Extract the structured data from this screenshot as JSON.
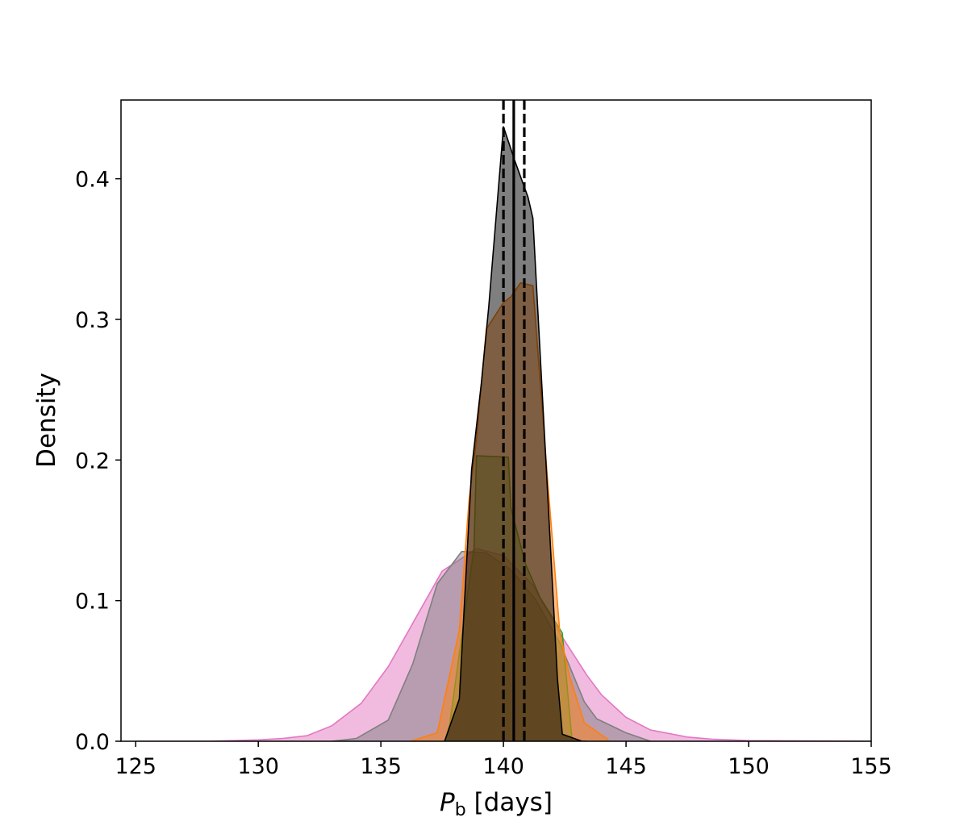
{
  "chart_data": {
    "type": "area",
    "title": "",
    "xlabel": {
      "symbol": "P",
      "subscript": "b",
      "unit": " [days]"
    },
    "ylabel": "Density",
    "xlim": [
      124.4,
      155
    ],
    "ylim": [
      0,
      0.456
    ],
    "xticks": [
      {
        "value": 125,
        "label": "125"
      },
      {
        "value": 130,
        "label": "130"
      },
      {
        "value": 135,
        "label": "135"
      },
      {
        "value": 140,
        "label": "140"
      },
      {
        "value": 145,
        "label": "145"
      },
      {
        "value": 150,
        "label": "150"
      },
      {
        "value": 155,
        "label": "155"
      }
    ],
    "yticks": [
      {
        "value": 0.0,
        "label": "0.0"
      },
      {
        "value": 0.1,
        "label": "0.1"
      },
      {
        "value": 0.2,
        "label": "0.2"
      },
      {
        "value": 0.3,
        "label": "0.3"
      },
      {
        "value": 0.4,
        "label": "0.4"
      }
    ],
    "grid": false,
    "legend": "none",
    "series": [
      {
        "color": "#e377c2",
        "fill_opacity": 0.5,
        "points": [
          [
            125,
            0
          ],
          [
            128,
            0
          ],
          [
            130,
            0.001
          ],
          [
            131,
            0.002
          ],
          [
            132,
            0.004
          ],
          [
            133,
            0.011
          ],
          [
            134.2,
            0.027
          ],
          [
            135.3,
            0.053
          ],
          [
            136.4,
            0.087
          ],
          [
            137.5,
            0.121
          ],
          [
            138.9,
            0.137
          ],
          [
            140,
            0.132
          ],
          [
            141.2,
            0.111
          ],
          [
            142.4,
            0.074
          ],
          [
            143.4,
            0.047
          ],
          [
            144,
            0.033
          ],
          [
            145,
            0.017
          ],
          [
            146,
            0.008
          ],
          [
            147.5,
            0.003
          ],
          [
            148.5,
            0.0015
          ],
          [
            150,
            0.0005
          ],
          [
            155,
            0
          ]
        ]
      },
      {
        "color": "#7f7f7f",
        "fill_opacity": 0.5,
        "points": [
          [
            133,
            0
          ],
          [
            134,
            0.002
          ],
          [
            135.3,
            0.015
          ],
          [
            136.3,
            0.055
          ],
          [
            137.3,
            0.112
          ],
          [
            138.3,
            0.135
          ],
          [
            139.3,
            0.134
          ],
          [
            140.3,
            0.122
          ],
          [
            141.3,
            0.101
          ],
          [
            142.3,
            0.07
          ],
          [
            143.3,
            0.028
          ],
          [
            143.8,
            0.016
          ],
          [
            145,
            0.006
          ],
          [
            146,
            0
          ]
        ]
      },
      {
        "color": "#2ca02c",
        "fill_opacity": 0.4,
        "points": [
          [
            137.6,
            0
          ],
          [
            137.8,
            0.011
          ],
          [
            138.3,
            0.075
          ],
          [
            138.8,
            0.137
          ],
          [
            138.9,
            0.203
          ],
          [
            140.2,
            0.202
          ],
          [
            140.3,
            0.166
          ],
          [
            140.9,
            0.126
          ],
          [
            141.5,
            0.102
          ],
          [
            142.4,
            0.077
          ],
          [
            142.8,
            0
          ]
        ]
      },
      {
        "color": "#ff7f0e",
        "fill_opacity": 0.5,
        "points": [
          [
            136.2,
            0
          ],
          [
            137.3,
            0.006
          ],
          [
            138.2,
            0.079
          ],
          [
            138.6,
            0.172
          ],
          [
            138.9,
            0.215
          ],
          [
            139.3,
            0.293
          ],
          [
            140,
            0.312
          ],
          [
            140.3,
            0.316
          ],
          [
            140.7,
            0.326
          ],
          [
            141.2,
            0.324
          ],
          [
            141.8,
            0.186
          ],
          [
            142.3,
            0.077
          ],
          [
            142.7,
            0.046
          ],
          [
            143.3,
            0.013
          ],
          [
            144.2,
            0.002
          ],
          [
            144.3,
            0
          ]
        ]
      },
      {
        "color": "#000000",
        "fill_opacity": 0.5,
        "points": [
          [
            137.6,
            0
          ],
          [
            138.2,
            0.03
          ],
          [
            138.7,
            0.193
          ],
          [
            139.1,
            0.255
          ],
          [
            139.4,
            0.309
          ],
          [
            140,
            0.437
          ],
          [
            140.5,
            0.411
          ],
          [
            141,
            0.387
          ],
          [
            141.2,
            0.372
          ],
          [
            141.8,
            0.177
          ],
          [
            142.2,
            0.045
          ],
          [
            142.4,
            0.005
          ],
          [
            143.2,
            0
          ],
          [
            143.4,
            0
          ]
        ]
      }
    ],
    "reference_lines": [
      {
        "x": 140.42,
        "style": "solid"
      },
      {
        "x": 140.0,
        "style": "dashed"
      },
      {
        "x": 140.85,
        "style": "dashed"
      }
    ]
  }
}
